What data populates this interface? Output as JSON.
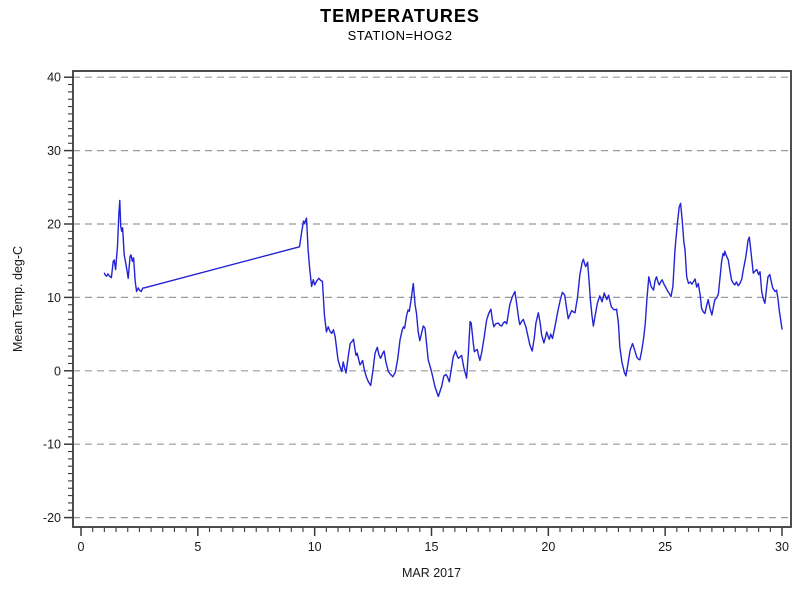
{
  "header": {
    "title": "TEMPERATURES",
    "subtitle": "STATION=HOG2"
  },
  "colors": {
    "line": "#2323d4",
    "grid": "#9a9a9a",
    "axis": "#3a3a3a",
    "text": "#1a1a1a",
    "background": "#ffffff"
  },
  "chart_data": {
    "type": "line",
    "title": "TEMPERATURES",
    "subtitle": "STATION=HOG2",
    "xlabel": "MAR 2017",
    "ylabel": "Mean Temp. deg-C",
    "xlim": [
      0,
      30
    ],
    "ylim": [
      -20,
      40
    ],
    "x_major_ticks": [
      0,
      5,
      10,
      15,
      20,
      25,
      30
    ],
    "x_minor_step": 0.5,
    "y_major_ticks": [
      -20,
      -10,
      0,
      10,
      20,
      30,
      40
    ],
    "y_minor_step": 1,
    "grid": "horizontal-dashed-at-major-y",
    "legend_position": "none",
    "series": [
      {
        "name": "Mean Temp",
        "color": "#2323d4",
        "points": [
          [
            1.0,
            13.3
          ],
          [
            1.05,
            13.0
          ],
          [
            1.1,
            12.9
          ],
          [
            1.15,
            13.2
          ],
          [
            1.22,
            12.9
          ],
          [
            1.3,
            12.7
          ],
          [
            1.38,
            14.9
          ],
          [
            1.42,
            15.1
          ],
          [
            1.48,
            13.8
          ],
          [
            1.56,
            17.0
          ],
          [
            1.62,
            21.5
          ],
          [
            1.66,
            23.2
          ],
          [
            1.7,
            19.7
          ],
          [
            1.74,
            19.0
          ],
          [
            1.78,
            19.5
          ],
          [
            1.85,
            15.8
          ],
          [
            1.95,
            14.0
          ],
          [
            2.02,
            12.6
          ],
          [
            2.1,
            15.6
          ],
          [
            2.14,
            15.8
          ],
          [
            2.2,
            14.9
          ],
          [
            2.25,
            15.4
          ],
          [
            2.32,
            12.2
          ],
          [
            2.38,
            10.8
          ],
          [
            2.45,
            11.3
          ],
          [
            2.5,
            11.0
          ],
          [
            2.57,
            10.8
          ],
          [
            2.65,
            11.3
          ],
          [
            2.7,
            11.3
          ],
          [
            9.35,
            16.9
          ],
          [
            9.45,
            19.0
          ],
          [
            9.52,
            20.4
          ],
          [
            9.57,
            20.1
          ],
          [
            9.65,
            20.8
          ],
          [
            9.72,
            16.5
          ],
          [
            9.78,
            14.2
          ],
          [
            9.87,
            11.5
          ],
          [
            9.94,
            12.4
          ],
          [
            10.0,
            11.7
          ],
          [
            10.1,
            12.3
          ],
          [
            10.18,
            12.6
          ],
          [
            10.26,
            12.3
          ],
          [
            10.33,
            12.2
          ],
          [
            10.42,
            7.5
          ],
          [
            10.5,
            5.3
          ],
          [
            10.58,
            6.0
          ],
          [
            10.65,
            5.4
          ],
          [
            10.73,
            5.1
          ],
          [
            10.8,
            5.6
          ],
          [
            10.88,
            4.6
          ],
          [
            11.0,
            1.5
          ],
          [
            11.08,
            0.6
          ],
          [
            11.16,
            -0.1
          ],
          [
            11.22,
            1.2
          ],
          [
            11.28,
            0.4
          ],
          [
            11.34,
            -0.3
          ],
          [
            11.45,
            2.2
          ],
          [
            11.52,
            3.7
          ],
          [
            11.6,
            4.0
          ],
          [
            11.66,
            4.3
          ],
          [
            11.72,
            3.0
          ],
          [
            11.77,
            2.1
          ],
          [
            11.82,
            2.4
          ],
          [
            11.88,
            1.6
          ],
          [
            11.94,
            0.8
          ],
          [
            12.0,
            1.1
          ],
          [
            12.05,
            1.4
          ],
          [
            12.12,
            0.2
          ],
          [
            12.22,
            -0.9
          ],
          [
            12.3,
            -1.5
          ],
          [
            12.4,
            -2.0
          ],
          [
            12.5,
            0.2
          ],
          [
            12.58,
            2.4
          ],
          [
            12.68,
            3.2
          ],
          [
            12.75,
            2.2
          ],
          [
            12.82,
            1.7
          ],
          [
            12.9,
            2.3
          ],
          [
            12.97,
            2.7
          ],
          [
            13.05,
            1.2
          ],
          [
            13.15,
            -0.1
          ],
          [
            13.25,
            -0.5
          ],
          [
            13.35,
            -0.8
          ],
          [
            13.45,
            -0.2
          ],
          [
            13.55,
            1.5
          ],
          [
            13.65,
            4.2
          ],
          [
            13.75,
            5.6
          ],
          [
            13.8,
            6.0
          ],
          [
            13.85,
            5.8
          ],
          [
            13.94,
            7.6
          ],
          [
            14.0,
            8.3
          ],
          [
            14.05,
            8.1
          ],
          [
            14.12,
            9.5
          ],
          [
            14.22,
            11.9
          ],
          [
            14.3,
            9.0
          ],
          [
            14.36,
            7.8
          ],
          [
            14.43,
            5.3
          ],
          [
            14.5,
            4.1
          ],
          [
            14.58,
            5.2
          ],
          [
            14.65,
            6.1
          ],
          [
            14.72,
            5.8
          ],
          [
            14.86,
            1.5
          ],
          [
            15.0,
            -0.1
          ],
          [
            15.15,
            -2.2
          ],
          [
            15.29,
            -3.5
          ],
          [
            15.43,
            -2.2
          ],
          [
            15.53,
            -0.7
          ],
          [
            15.62,
            -0.5
          ],
          [
            15.68,
            -0.8
          ],
          [
            15.76,
            -1.5
          ],
          [
            15.85,
            0.3
          ],
          [
            15.93,
            1.9
          ],
          [
            16.03,
            2.7
          ],
          [
            16.1,
            2.0
          ],
          [
            16.15,
            1.7
          ],
          [
            16.22,
            1.9
          ],
          [
            16.29,
            2.1
          ],
          [
            16.38,
            0.5
          ],
          [
            16.5,
            -1.0
          ],
          [
            16.58,
            2.5
          ],
          [
            16.65,
            6.7
          ],
          [
            16.7,
            6.5
          ],
          [
            16.78,
            4.0
          ],
          [
            16.83,
            2.6
          ],
          [
            16.9,
            2.8
          ],
          [
            16.96,
            2.9
          ],
          [
            17.02,
            2.0
          ],
          [
            17.07,
            1.4
          ],
          [
            17.15,
            2.5
          ],
          [
            17.25,
            4.5
          ],
          [
            17.36,
            6.9
          ],
          [
            17.45,
            7.8
          ],
          [
            17.54,
            8.4
          ],
          [
            17.6,
            7.0
          ],
          [
            17.67,
            6.0
          ],
          [
            17.75,
            6.4
          ],
          [
            17.86,
            6.5
          ],
          [
            17.93,
            6.2
          ],
          [
            18.0,
            6.1
          ],
          [
            18.07,
            6.5
          ],
          [
            18.14,
            6.7
          ],
          [
            18.22,
            6.4
          ],
          [
            18.35,
            9.0
          ],
          [
            18.45,
            10.0
          ],
          [
            18.57,
            10.8
          ],
          [
            18.65,
            9.0
          ],
          [
            18.74,
            6.9
          ],
          [
            18.78,
            6.3
          ],
          [
            18.85,
            6.7
          ],
          [
            18.93,
            7.0
          ],
          [
            19.0,
            6.3
          ],
          [
            19.04,
            6.0
          ],
          [
            19.12,
            4.8
          ],
          [
            19.21,
            3.5
          ],
          [
            19.31,
            2.7
          ],
          [
            19.4,
            4.5
          ],
          [
            19.47,
            6.5
          ],
          [
            19.57,
            7.9
          ],
          [
            19.65,
            6.5
          ],
          [
            19.71,
            4.9
          ],
          [
            19.81,
            3.8
          ],
          [
            19.88,
            4.6
          ],
          [
            19.93,
            5.3
          ],
          [
            20.0,
            4.6
          ],
          [
            20.04,
            4.3
          ],
          [
            20.1,
            5.0
          ],
          [
            20.18,
            4.4
          ],
          [
            20.28,
            6.0
          ],
          [
            20.42,
            8.3
          ],
          [
            20.52,
            9.8
          ],
          [
            20.6,
            10.7
          ],
          [
            20.7,
            10.3
          ],
          [
            20.78,
            8.5
          ],
          [
            20.85,
            7.1
          ],
          [
            20.93,
            7.7
          ],
          [
            21.0,
            8.2
          ],
          [
            21.08,
            8.0
          ],
          [
            21.14,
            7.9
          ],
          [
            21.25,
            10.0
          ],
          [
            21.35,
            13.1
          ],
          [
            21.45,
            14.8
          ],
          [
            21.5,
            15.2
          ],
          [
            21.56,
            14.5
          ],
          [
            21.6,
            14.2
          ],
          [
            21.68,
            14.8
          ],
          [
            21.75,
            12.0
          ],
          [
            21.8,
            9.7
          ],
          [
            21.87,
            7.5
          ],
          [
            21.93,
            6.1
          ],
          [
            22.0,
            7.5
          ],
          [
            22.1,
            9.2
          ],
          [
            22.2,
            10.2
          ],
          [
            22.3,
            9.4
          ],
          [
            22.39,
            10.6
          ],
          [
            22.5,
            9.7
          ],
          [
            22.58,
            10.3
          ],
          [
            22.65,
            9.3
          ],
          [
            22.7,
            8.7
          ],
          [
            22.78,
            8.4
          ],
          [
            22.85,
            8.3
          ],
          [
            22.92,
            8.4
          ],
          [
            23.0,
            6.5
          ],
          [
            23.06,
            3.3
          ],
          [
            23.15,
            1.2
          ],
          [
            23.25,
            -0.2
          ],
          [
            23.32,
            -0.7
          ],
          [
            23.4,
            0.8
          ],
          [
            23.5,
            2.8
          ],
          [
            23.6,
            3.7
          ],
          [
            23.68,
            3.0
          ],
          [
            23.78,
            1.9
          ],
          [
            23.85,
            1.6
          ],
          [
            23.92,
            1.5
          ],
          [
            24.0,
            2.8
          ],
          [
            24.08,
            4.5
          ],
          [
            24.15,
            6.5
          ],
          [
            24.22,
            9.7
          ],
          [
            24.3,
            12.8
          ],
          [
            24.4,
            11.5
          ],
          [
            24.5,
            11.0
          ],
          [
            24.57,
            12.3
          ],
          [
            24.63,
            12.8
          ],
          [
            24.7,
            12.0
          ],
          [
            24.75,
            11.7
          ],
          [
            24.82,
            12.2
          ],
          [
            24.87,
            12.4
          ],
          [
            24.95,
            11.8
          ],
          [
            25.02,
            11.4
          ],
          [
            25.1,
            10.9
          ],
          [
            25.18,
            10.5
          ],
          [
            25.25,
            10.1
          ],
          [
            25.33,
            11.5
          ],
          [
            25.42,
            16.5
          ],
          [
            25.52,
            20.0
          ],
          [
            25.6,
            22.3
          ],
          [
            25.66,
            22.8
          ],
          [
            25.73,
            20.5
          ],
          [
            25.8,
            17.5
          ],
          [
            25.85,
            16.5
          ],
          [
            25.92,
            12.8
          ],
          [
            26.0,
            11.9
          ],
          [
            26.08,
            12.1
          ],
          [
            26.15,
            11.8
          ],
          [
            26.22,
            12.2
          ],
          [
            26.28,
            12.5
          ],
          [
            26.35,
            11.4
          ],
          [
            26.42,
            11.9
          ],
          [
            26.5,
            10.3
          ],
          [
            26.56,
            8.5
          ],
          [
            26.64,
            8.0
          ],
          [
            26.7,
            7.8
          ],
          [
            26.77,
            8.8
          ],
          [
            26.84,
            9.7
          ],
          [
            26.92,
            8.5
          ],
          [
            27.0,
            7.6
          ],
          [
            27.07,
            8.8
          ],
          [
            27.13,
            9.7
          ],
          [
            27.2,
            9.9
          ],
          [
            27.28,
            10.5
          ],
          [
            27.35,
            12.8
          ],
          [
            27.42,
            15.0
          ],
          [
            27.48,
            16.0
          ],
          [
            27.52,
            15.7
          ],
          [
            27.55,
            16.3
          ],
          [
            27.63,
            15.6
          ],
          [
            27.7,
            15.1
          ],
          [
            27.78,
            13.5
          ],
          [
            27.84,
            12.4
          ],
          [
            27.9,
            12.0
          ],
          [
            27.98,
            11.7
          ],
          [
            28.05,
            12.1
          ],
          [
            28.12,
            11.6
          ],
          [
            28.2,
            11.9
          ],
          [
            28.28,
            12.5
          ],
          [
            28.35,
            13.8
          ],
          [
            28.45,
            15.5
          ],
          [
            28.55,
            17.8
          ],
          [
            28.6,
            18.2
          ],
          [
            28.65,
            16.8
          ],
          [
            28.7,
            15.4
          ],
          [
            28.77,
            13.3
          ],
          [
            28.85,
            13.6
          ],
          [
            28.92,
            13.8
          ],
          [
            29.0,
            13.1
          ],
          [
            29.06,
            13.5
          ],
          [
            29.13,
            10.8
          ],
          [
            29.2,
            9.8
          ],
          [
            29.27,
            9.2
          ],
          [
            29.35,
            11.5
          ],
          [
            29.4,
            12.8
          ],
          [
            29.48,
            13.1
          ],
          [
            29.55,
            12.0
          ],
          [
            29.6,
            11.3
          ],
          [
            29.7,
            10.8
          ],
          [
            29.77,
            11.0
          ],
          [
            29.83,
            9.8
          ],
          [
            29.88,
            8.3
          ],
          [
            30.0,
            5.7
          ]
        ]
      }
    ]
  }
}
